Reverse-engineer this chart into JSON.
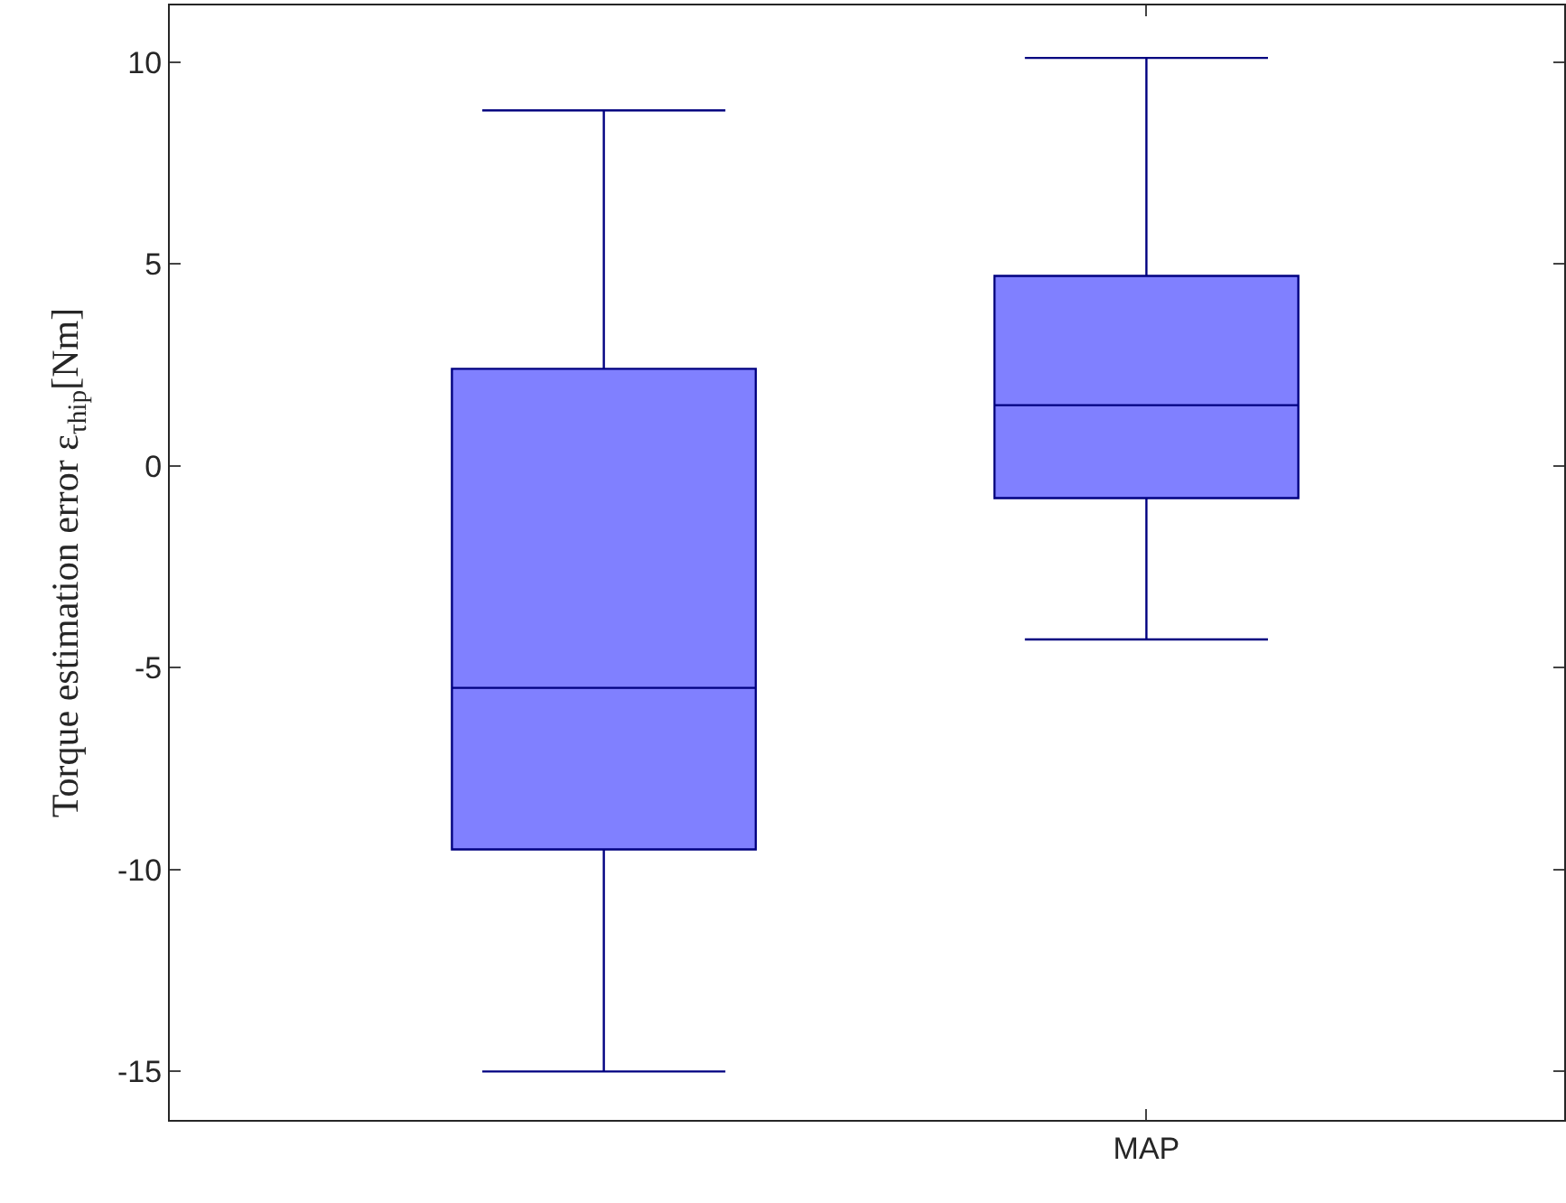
{
  "chart_data": {
    "type": "box",
    "ylabel": "Torque estimation error ε$_{τhip}$[Nm]",
    "categories": [
      null,
      "MAP"
    ],
    "series": [
      {
        "color": "#8080ff",
        "boxes": [
          {
            "low": -15.0,
            "q1": -9.5,
            "median": -5.5,
            "q3": 2.4,
            "high": 8.8
          },
          {
            "low": -4.3,
            "q1": -0.8,
            "median": 1.5,
            "q3": 4.7,
            "high": 10.1
          }
        ]
      }
    ],
    "ylim": [
      -16.2,
      11.4
    ],
    "yticks": [
      -15,
      -10,
      -5,
      0,
      5,
      10
    ],
    "legend": false
  }
}
